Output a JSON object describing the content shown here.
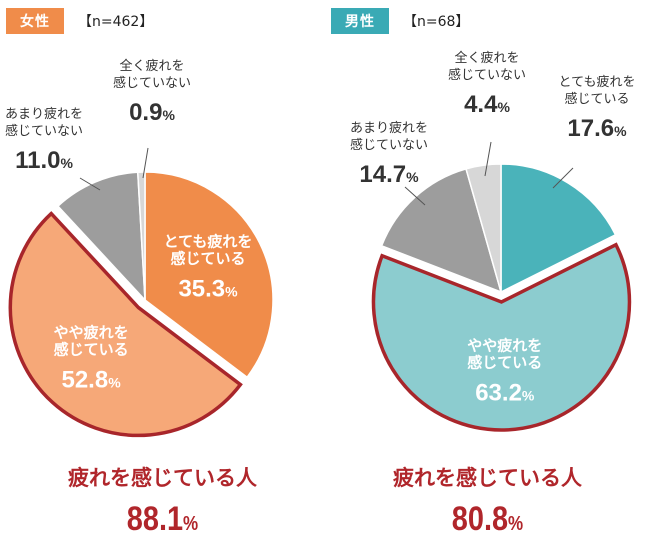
{
  "chart_data": [
    {
      "type": "pie",
      "group": "女性",
      "n_label": "【n=462】",
      "badge_color": "#f08c4a",
      "slices": [
        {
          "label": "とても疲れを\n感じている",
          "value": 35.3,
          "value_text": "35.3",
          "color": "#f08c4a",
          "text_color": "#ffffff",
          "label_inside": true
        },
        {
          "label": "やや疲れを\n感じている",
          "value": 52.8,
          "value_text": "52.8",
          "color": "#f6a878",
          "text_color": "#ffffff",
          "label_inside": true,
          "exploded": true
        },
        {
          "label": "あまり疲れを\n感じていない",
          "value": 11.0,
          "value_text": "11.0",
          "color": "#9d9d9d",
          "text_color": "#333333",
          "label_inside": false
        },
        {
          "label": "全く疲れを\n感じていない",
          "value": 0.9,
          "value_text": "0.9",
          "color": "#d7d7d7",
          "text_color": "#333333",
          "label_inside": false
        }
      ],
      "summary_label": "疲れを感じている人",
      "summary_value": "88.1"
    },
    {
      "type": "pie",
      "group": "男性",
      "n_label": "【n=68】",
      "badge_color": "#3aaab5",
      "slices": [
        {
          "label": "とても疲れを\n感じている",
          "value": 17.6,
          "value_text": "17.6",
          "color": "#4ab3ba",
          "text_color": "#333333",
          "label_inside": false
        },
        {
          "label": "やや疲れを\n感じている",
          "value": 63.2,
          "value_text": "63.2",
          "color": "#8ccccf",
          "text_color": "#ffffff",
          "label_inside": true,
          "exploded": true
        },
        {
          "label": "あまり疲れを\n感じていない",
          "value": 14.7,
          "value_text": "14.7",
          "color": "#9d9d9d",
          "text_color": "#333333",
          "label_inside": false
        },
        {
          "label": "全く疲れを\n感じていない",
          "value": 4.4,
          "value_text": "4.4",
          "color": "#d7d7d7",
          "text_color": "#333333",
          "label_inside": false
        }
      ],
      "summary_label": "疲れを感じている人",
      "summary_value": "80.8"
    }
  ],
  "percent_sign": "%",
  "highlight_border_color": "#a8262b"
}
